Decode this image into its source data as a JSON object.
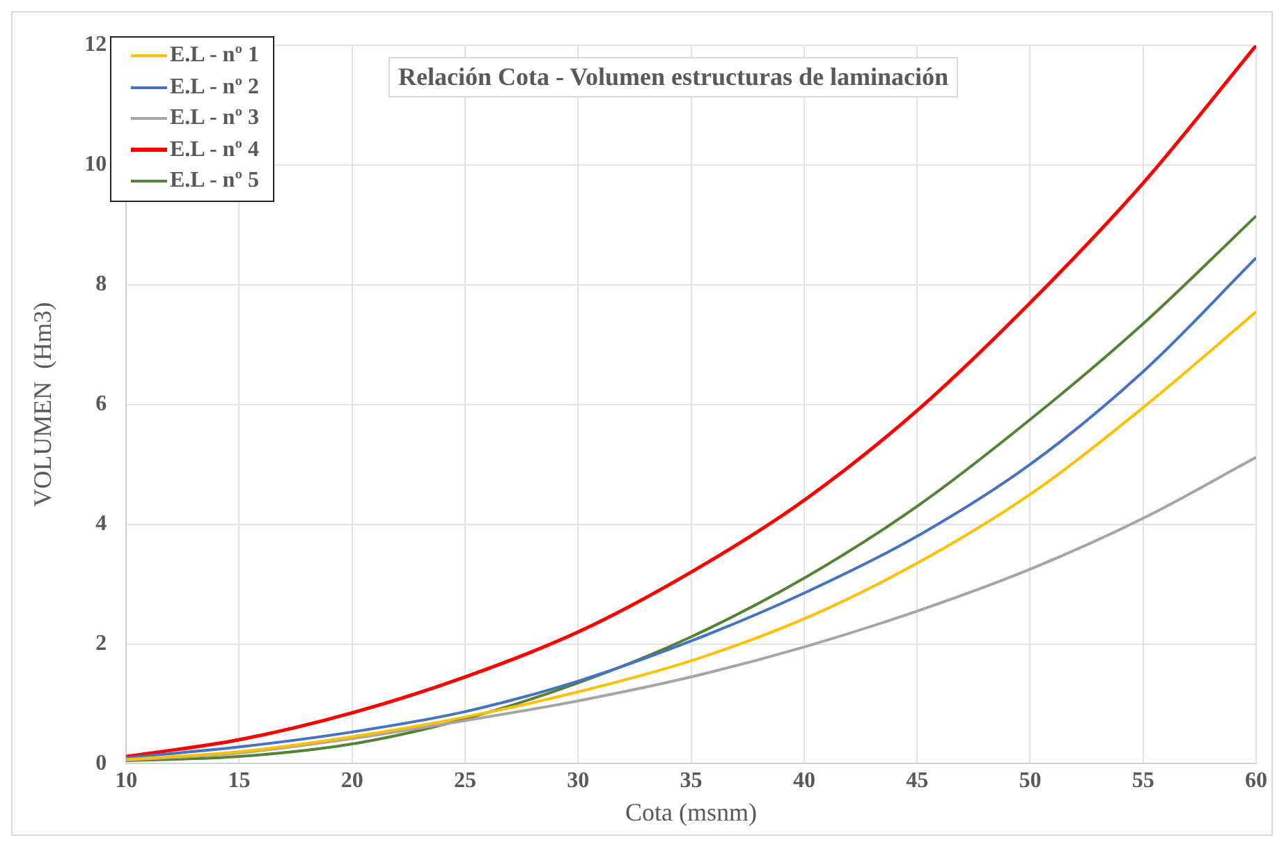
{
  "chart_data": {
    "type": "line",
    "title": "Relación Cota - Volumen estructuras de laminación",
    "xlabel": "Cota (msnm)",
    "ylabel": "VOLUMEN  (Hm3)",
    "x": [
      10,
      15,
      20,
      25,
      30,
      35,
      40,
      45,
      50,
      55,
      60
    ],
    "series": [
      {
        "name": "E.L - nº 1",
        "color": "#ffc000",
        "values": [
          0.07,
          0.2,
          0.45,
          0.78,
          1.2,
          1.72,
          2.42,
          3.35,
          4.5,
          5.95,
          7.55
        ]
      },
      {
        "name": "E.L - nº 2",
        "color": "#4472c4",
        "values": [
          0.1,
          0.28,
          0.53,
          0.87,
          1.38,
          2.05,
          2.85,
          3.8,
          5.0,
          6.55,
          8.45
        ]
      },
      {
        "name": "E.L - nº 3",
        "color": "#a5a5a5",
        "values": [
          0.06,
          0.18,
          0.42,
          0.72,
          1.05,
          1.45,
          1.95,
          2.55,
          3.25,
          4.1,
          5.12
        ]
      },
      {
        "name": "E.L - nº 4",
        "color": "#ff0000",
        "values": [
          0.12,
          0.4,
          0.85,
          1.45,
          2.2,
          3.2,
          4.4,
          5.9,
          7.7,
          9.7,
          12.0
        ]
      },
      {
        "name": "E.L - nº 5",
        "color": "#548235",
        "values": [
          0.05,
          0.12,
          0.33,
          0.75,
          1.35,
          2.12,
          3.1,
          4.3,
          5.75,
          7.35,
          9.15
        ]
      }
    ],
    "xlim": [
      10,
      60
    ],
    "xticks": [
      10,
      15,
      20,
      25,
      30,
      35,
      40,
      45,
      50,
      55,
      60
    ],
    "ylim": [
      0,
      12
    ],
    "yticks": [
      0,
      2,
      4,
      6,
      8,
      10,
      12
    ],
    "grid": true,
    "legend": "top left",
    "marker": "none",
    "line_style": "solid"
  }
}
